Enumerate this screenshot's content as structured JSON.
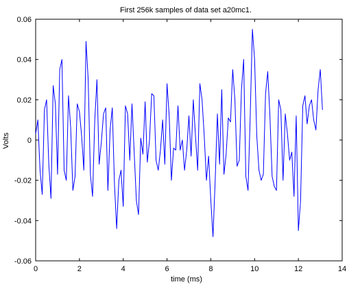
{
  "chart_data": {
    "type": "line",
    "title": "First 256k samples of data set a20mc1.",
    "xlabel": "time (ms)",
    "ylabel": "Volts",
    "xlim": [
      0,
      14
    ],
    "ylim": [
      -0.06,
      0.06
    ],
    "xticks": [
      0,
      2,
      4,
      6,
      8,
      10,
      12,
      14
    ],
    "xtick_labels": [
      "0",
      "2",
      "4",
      "6",
      "8",
      "10",
      "12",
      "14"
    ],
    "yticks": [
      -0.06,
      -0.04,
      -0.02,
      0,
      0.02,
      0.04,
      0.06
    ],
    "ytick_labels": [
      "-0.06",
      "-0.04",
      "-0.02",
      "0",
      "0.02",
      "0.04",
      "0.06"
    ],
    "grid": false,
    "line_color": "#0000ff",
    "series": [
      {
        "x": [
          0,
          0.1,
          0.2,
          0.3,
          0.4,
          0.5,
          0.6,
          0.7,
          0.8,
          0.9,
          1.0,
          1.1,
          1.2,
          1.3,
          1.4,
          1.5,
          1.6,
          1.7,
          1.8,
          1.9,
          2.0,
          2.1,
          2.2,
          2.3,
          2.4,
          2.5,
          2.6,
          2.7,
          2.8,
          2.9,
          3.0,
          3.1,
          3.2,
          3.3,
          3.4,
          3.5,
          3.6,
          3.7,
          3.8,
          3.9,
          4.0,
          4.1,
          4.2,
          4.3,
          4.4,
          4.5,
          4.6,
          4.7,
          4.8,
          4.9,
          5.0,
          5.1,
          5.2,
          5.3,
          5.4,
          5.5,
          5.6,
          5.7,
          5.8,
          5.9,
          6.0,
          6.1,
          6.2,
          6.3,
          6.4,
          6.5,
          6.6,
          6.7,
          6.8,
          6.9,
          7.0,
          7.1,
          7.2,
          7.3,
          7.4,
          7.5,
          7.6,
          7.7,
          7.8,
          7.9,
          8.0,
          8.1,
          8.2,
          8.3,
          8.4,
          8.5,
          8.6,
          8.7,
          8.8,
          8.9,
          9.0,
          9.1,
          9.2,
          9.3,
          9.4,
          9.5,
          9.6,
          9.7,
          9.8,
          9.9,
          10.0,
          10.1,
          10.2,
          10.3,
          10.4,
          10.5,
          10.6,
          10.7,
          10.8,
          10.9,
          11.0,
          11.1,
          11.2,
          11.3,
          11.4,
          11.5,
          11.6,
          11.7,
          11.8,
          11.9,
          12.0,
          12.1,
          12.2,
          12.3,
          12.4,
          12.5,
          12.6,
          12.7,
          12.8,
          12.9,
          13.0,
          13.1
        ],
        "y": [
          0.003,
          0.01,
          -0.015,
          -0.027,
          0.015,
          0.02,
          -0.012,
          -0.029,
          0.027,
          0.018,
          -0.017,
          0.035,
          0.04,
          -0.015,
          -0.02,
          0.022,
          0.006,
          -0.025,
          -0.018,
          0.018,
          0.014,
          0.002,
          -0.015,
          0.049,
          0.03,
          -0.017,
          -0.028,
          0.01,
          0.03,
          -0.012,
          -0.001,
          0.013,
          0.016,
          -0.025,
          0.005,
          0.016,
          -0.022,
          -0.044,
          -0.02,
          -0.015,
          -0.033,
          0.017,
          0.013,
          -0.01,
          0.018,
          -0.006,
          -0.03,
          -0.037,
          0.001,
          -0.007,
          0.019,
          -0.011,
          0.0,
          0.023,
          0.022,
          -0.01,
          -0.015,
          -0.005,
          0.01,
          -0.012,
          0.028,
          0.012,
          -0.02,
          -0.004,
          -0.005,
          0.017,
          -0.005,
          0.0,
          -0.015,
          -0.005,
          0.012,
          -0.008,
          0.02,
          0.002,
          -0.015,
          0.028,
          0.02,
          0.002,
          -0.02,
          -0.008,
          -0.03,
          -0.048,
          -0.02,
          0.013,
          -0.012,
          0.025,
          -0.017,
          -0.007,
          0.011,
          0.009,
          0.035,
          0.02,
          -0.013,
          -0.01,
          0.025,
          0.04,
          -0.018,
          -0.025,
          0.012,
          0.055,
          0.04,
          0.002,
          -0.015,
          -0.02,
          -0.017,
          0.023,
          0.034,
          0.012,
          -0.018,
          -0.023,
          -0.025,
          0.02,
          0.015,
          -0.02,
          0.013,
          0.003,
          -0.01,
          -0.006,
          -0.028,
          0.012,
          -0.045,
          -0.03,
          0.017,
          0.022,
          0.008,
          0.017,
          0.02,
          0.01,
          0.005,
          0.025,
          0.035,
          0.015
        ]
      }
    ]
  }
}
